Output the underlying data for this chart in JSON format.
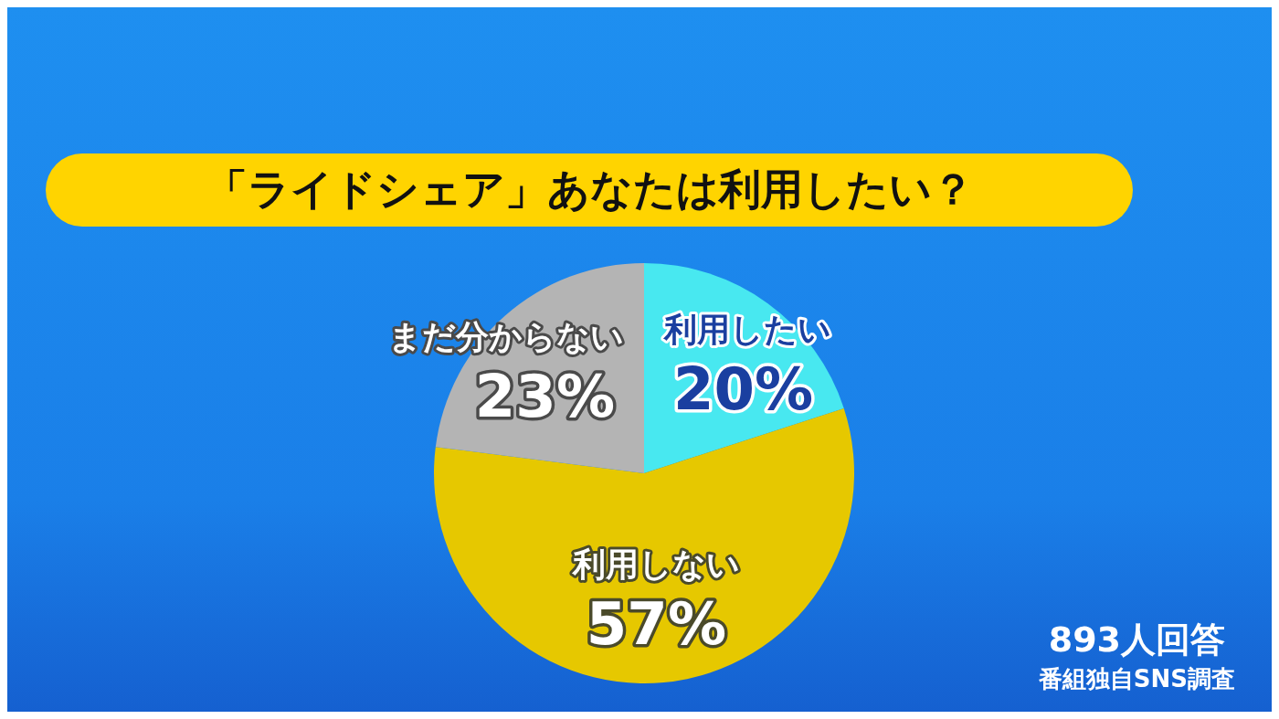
{
  "chart_data": {
    "type": "pie",
    "title": "「ライドシェア」あなたは利用したい？",
    "categories": [
      "利用したい",
      "利用しない",
      "まだ分からない"
    ],
    "values": [
      20,
      57,
      23
    ],
    "value_labels": [
      "20%",
      "57%",
      "23%"
    ],
    "colors": [
      "#48e8f0",
      "#e6c800",
      "#b4b4b4"
    ],
    "annotations": [
      "893人回答",
      "番組独自SNS調査"
    ]
  }
}
